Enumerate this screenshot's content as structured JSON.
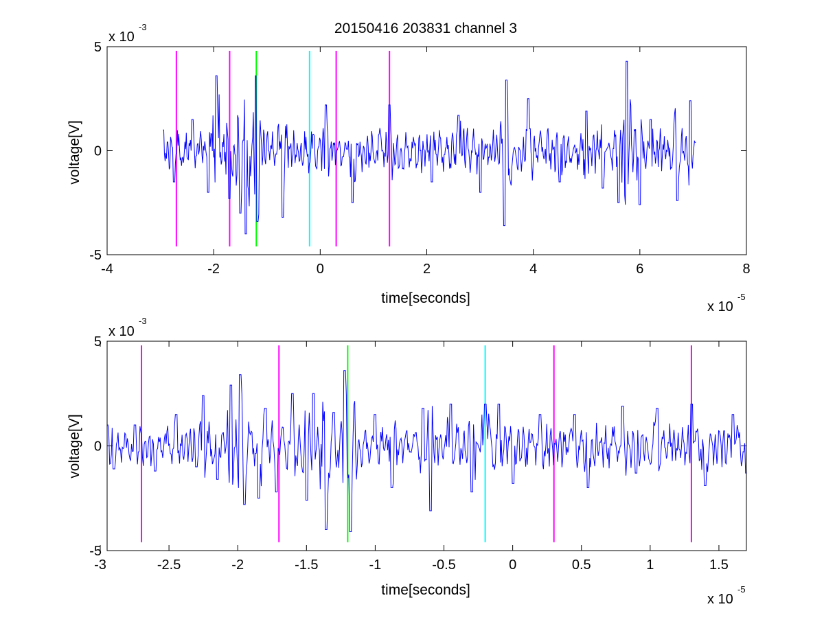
{
  "figure": {
    "title": "20150416 203831 channel 3"
  },
  "chart_data": [
    {
      "type": "line",
      "title": "20150416 203831 channel 3",
      "xlabel": "time[seconds]",
      "ylabel": "voltage[V]",
      "x_multiplier": {
        "base": "x 10",
        "exponent": "-5"
      },
      "y_multiplier": {
        "base": "x 10",
        "exponent": "-3"
      },
      "xlim": [
        -4,
        8
      ],
      "ylim": [
        -5,
        5
      ],
      "x_unit_scale": 1e-05,
      "y_unit_scale": 0.001,
      "xticks": [
        -4,
        -2,
        0,
        2,
        4,
        6,
        8
      ],
      "xtick_labels": [
        "-4",
        "-2",
        "0",
        "2",
        "4",
        "6",
        "8"
      ],
      "yticks": [
        -5,
        0,
        5
      ],
      "ytick_labels": [
        "-5",
        "0",
        "5"
      ],
      "grid": false,
      "series": [
        {
          "color": "#0000ff",
          "x_range": [
            -2.95,
            7.05
          ],
          "y_peaks": [
            [
              -2.95,
              1.0
            ],
            [
              -2.75,
              -1.5
            ],
            [
              -2.4,
              1.5
            ],
            [
              -2.1,
              -2.0
            ],
            [
              -1.95,
              3.6
            ],
            [
              -1.7,
              -2.3
            ],
            [
              -1.5,
              -3.0
            ],
            [
              -1.4,
              -4.0
            ],
            [
              -1.2,
              3.6
            ],
            [
              -1.18,
              -3.4
            ],
            [
              -0.7,
              -3.2
            ],
            [
              0.1,
              2.2
            ],
            [
              0.6,
              -2.5
            ],
            [
              1.3,
              2.2
            ],
            [
              2.1,
              -1.5
            ],
            [
              2.6,
              1.7
            ],
            [
              3.0,
              -2.0
            ],
            [
              3.5,
              3.4
            ],
            [
              3.45,
              -3.6
            ],
            [
              3.9,
              2.5
            ],
            [
              4.5,
              -1.5
            ],
            [
              5.0,
              1.9
            ],
            [
              5.3,
              -1.8
            ],
            [
              5.75,
              4.3
            ],
            [
              5.6,
              -2.5
            ],
            [
              6.0,
              -2.6
            ],
            [
              6.2,
              1.5
            ],
            [
              6.7,
              -2.4
            ],
            [
              6.95,
              2.4
            ],
            [
              7.05,
              0.4
            ]
          ]
        }
      ],
      "markers": [
        {
          "x": -2.7,
          "color": "#ff00ff"
        },
        {
          "x": -1.7,
          "color": "#ff00ff"
        },
        {
          "x": -1.2,
          "color": "#00ff00"
        },
        {
          "x": -0.2,
          "color": "#00ffff"
        },
        {
          "x": 0.3,
          "color": "#ff00ff"
        },
        {
          "x": 1.3,
          "color": "#ff00ff"
        }
      ],
      "marker_ylim": [
        -4.6,
        4.8
      ]
    },
    {
      "type": "line",
      "xlabel": "time[seconds]",
      "ylabel": "voltage[V]",
      "x_multiplier": {
        "base": "x 10",
        "exponent": "-5"
      },
      "y_multiplier": {
        "base": "x 10",
        "exponent": "-3"
      },
      "xlim": [
        -2.95,
        1.7
      ],
      "ylim": [
        -5,
        5
      ],
      "x_unit_scale": 1e-05,
      "y_unit_scale": 0.001,
      "xticks": [
        -3,
        -2.5,
        -2,
        -1.5,
        -1,
        -0.5,
        0,
        0.5,
        1,
        1.5
      ],
      "xtick_labels": [
        "-3",
        "-2.5",
        "-2",
        "-1.5",
        "-1",
        "-0.5",
        "0",
        "0.5",
        "1",
        "1.5"
      ],
      "yticks": [
        -5,
        0,
        5
      ],
      "ytick_labels": [
        "-5",
        "0",
        "5"
      ],
      "grid": false,
      "series": [
        {
          "color": "#0000ff",
          "x_range": [
            -2.95,
            1.7
          ],
          "y_peaks": [
            [
              -2.95,
              1.0
            ],
            [
              -2.9,
              -1.1
            ],
            [
              -2.75,
              1.0
            ],
            [
              -2.6,
              -1.2
            ],
            [
              -2.45,
              1.5
            ],
            [
              -2.3,
              -1.0
            ],
            [
              -2.25,
              2.4
            ],
            [
              -2.15,
              -1.6
            ],
            [
              -2.05,
              2.9
            ],
            [
              -1.95,
              -2.8
            ],
            [
              -1.98,
              3.4
            ],
            [
              -1.85,
              -2.5
            ],
            [
              -1.8,
              1.8
            ],
            [
              -1.72,
              -2.2
            ],
            [
              -1.6,
              2.5
            ],
            [
              -1.5,
              -2.6
            ],
            [
              -1.45,
              2.5
            ],
            [
              -1.36,
              -4.0
            ],
            [
              -1.3,
              1.6
            ],
            [
              -1.22,
              3.6
            ],
            [
              -1.18,
              -4.1
            ],
            [
              -1.0,
              1.5
            ],
            [
              -0.88,
              -2.0
            ],
            [
              -0.65,
              1.8
            ],
            [
              -0.6,
              -3.1
            ],
            [
              -0.45,
              2.0
            ],
            [
              -0.3,
              -2.2
            ],
            [
              -0.2,
              2.0
            ],
            [
              -0.1,
              2.0
            ],
            [
              0.0,
              -1.8
            ],
            [
              0.2,
              1.5
            ],
            [
              0.45,
              1.5
            ],
            [
              0.55,
              -2.0
            ],
            [
              0.8,
              1.9
            ],
            [
              0.9,
              -1.3
            ],
            [
              1.05,
              1.8
            ],
            [
              1.3,
              2.0
            ],
            [
              1.4,
              -1.9
            ],
            [
              1.6,
              1.5
            ],
            [
              1.7,
              -1.3
            ]
          ]
        }
      ],
      "markers": [
        {
          "x": -2.7,
          "color": "#ff00ff"
        },
        {
          "x": -1.7,
          "color": "#ff00ff"
        },
        {
          "x": -1.2,
          "color": "#00ff00"
        },
        {
          "x": -0.2,
          "color": "#00ffff"
        },
        {
          "x": 0.3,
          "color": "#ff00ff"
        },
        {
          "x": 1.3,
          "color": "#ff00ff"
        }
      ],
      "marker_ylim": [
        -4.6,
        4.8
      ]
    }
  ]
}
